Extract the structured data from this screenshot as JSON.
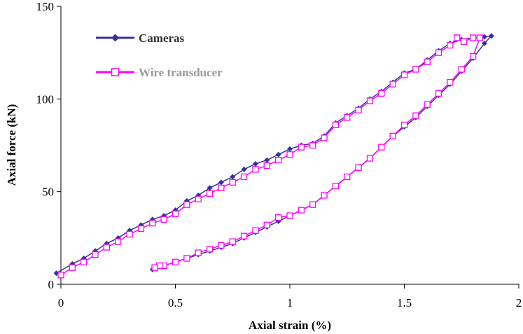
{
  "chart_data": {
    "type": "line",
    "title": "",
    "xlabel": "Axial strain (%)",
    "ylabel": "Axial force (kN)",
    "xlim": [
      0,
      2
    ],
    "ylim": [
      0,
      150
    ],
    "xticks": [
      "0",
      "0.5",
      "1",
      "1.5",
      "2"
    ],
    "yticks": [
      "0",
      "50",
      "100",
      "150"
    ],
    "grid": false,
    "legend_position": "top-left",
    "series": [
      {
        "name": "Cameras",
        "color": "#333399",
        "marker": "diamond",
        "loading": {
          "x": [
            -0.02,
            0.05,
            0.1,
            0.15,
            0.2,
            0.25,
            0.3,
            0.35,
            0.4,
            0.45,
            0.5,
            0.55,
            0.6,
            0.65,
            0.7,
            0.75,
            0.8,
            0.85,
            0.9,
            0.95,
            1.0,
            1.05,
            1.1,
            1.15,
            1.2,
            1.25,
            1.3,
            1.35,
            1.4,
            1.45,
            1.5,
            1.55,
            1.6,
            1.65,
            1.7,
            1.75,
            1.8,
            1.85,
            1.88
          ],
          "y": [
            6,
            11,
            14,
            18,
            22,
            25,
            29,
            32,
            35,
            37,
            40,
            45,
            48,
            52,
            55,
            58,
            62,
            65,
            67,
            70,
            73,
            75,
            76,
            80,
            87,
            91,
            95,
            100,
            104,
            109,
            114,
            116,
            121,
            126,
            130,
            132,
            133,
            133.5,
            134
          ]
        },
        "unloading": {
          "x": [
            1.88,
            1.85,
            1.8,
            1.75,
            1.7,
            1.65,
            1.6,
            1.55,
            1.5,
            1.45,
            1.4,
            1.35,
            1.3,
            1.25,
            1.2,
            1.15,
            1.1,
            1.05,
            1.0,
            0.95,
            0.9,
            0.85,
            0.8,
            0.75,
            0.7,
            0.65,
            0.6,
            0.55,
            0.5,
            0.45,
            0.42,
            0.4
          ],
          "y": [
            134,
            130,
            122,
            115,
            108,
            102,
            96,
            90,
            85,
            80,
            74,
            68,
            63,
            58,
            53,
            48,
            43,
            40,
            37,
            34,
            31,
            28,
            25,
            22,
            20,
            18,
            16,
            14,
            12,
            10,
            9,
            8
          ]
        }
      },
      {
        "name": "Wire transducer",
        "color": "#ff00ff",
        "marker": "square",
        "loading": {
          "x": [
            0.0,
            0.05,
            0.1,
            0.15,
            0.2,
            0.25,
            0.3,
            0.35,
            0.4,
            0.45,
            0.5,
            0.55,
            0.6,
            0.65,
            0.7,
            0.75,
            0.8,
            0.85,
            0.9,
            0.95,
            1.0,
            1.05,
            1.1,
            1.15,
            1.2,
            1.25,
            1.3,
            1.35,
            1.4,
            1.45,
            1.5,
            1.55,
            1.6,
            1.65,
            1.7,
            1.73
          ],
          "y": [
            5,
            9,
            12,
            16,
            20,
            23,
            27,
            30,
            33,
            35,
            38,
            43,
            46,
            49,
            52,
            55,
            58,
            62,
            64,
            67,
            70,
            74,
            75,
            79,
            86,
            90,
            94,
            99,
            103,
            108,
            113,
            116,
            120,
            125,
            129,
            133
          ]
        },
        "unloading": {
          "x": [
            1.73,
            1.76,
            1.8,
            1.83,
            1.8,
            1.75,
            1.7,
            1.65,
            1.6,
            1.55,
            1.5,
            1.45,
            1.4,
            1.35,
            1.3,
            1.25,
            1.2,
            1.15,
            1.1,
            1.05,
            1.0,
            0.95,
            0.9,
            0.85,
            0.8,
            0.75,
            0.7,
            0.65,
            0.6,
            0.55,
            0.5,
            0.45,
            0.43,
            0.41
          ],
          "y": [
            133,
            131,
            133,
            133,
            123,
            116,
            109,
            103,
            97,
            91,
            86,
            80,
            74,
            68,
            63,
            58,
            53,
            48,
            43,
            40,
            37,
            36,
            32,
            29,
            26,
            23,
            21,
            19,
            17,
            14,
            12,
            10,
            10,
            9
          ]
        }
      }
    ]
  }
}
